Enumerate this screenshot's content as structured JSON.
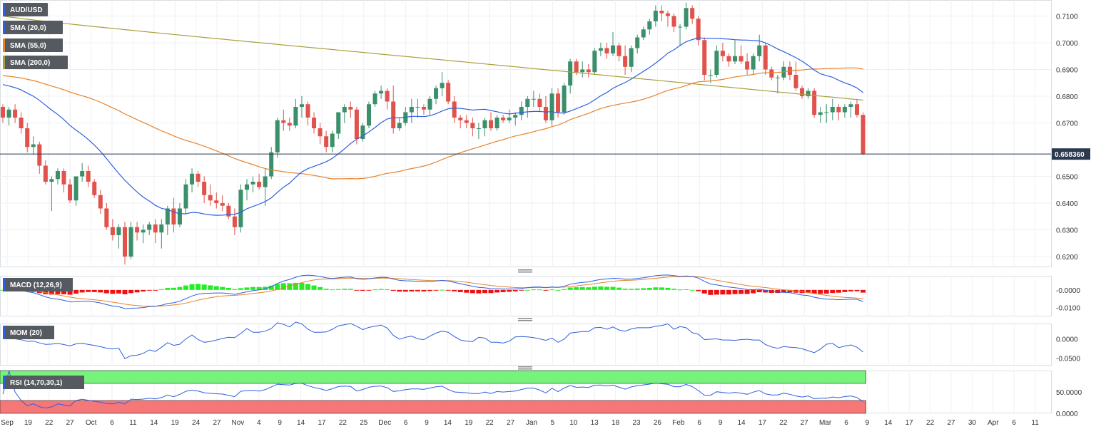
{
  "chart_data": [
    {
      "type": "candlestick",
      "title": "AUD/USD",
      "x_ticks": [
        "Sep",
        "19",
        "22",
        "27",
        "Oct",
        "6",
        "11",
        "14",
        "19",
        "24",
        "27",
        "Nov",
        "4",
        "9",
        "14",
        "17",
        "22",
        "25",
        "Dec",
        "6",
        "9",
        "14",
        "19",
        "22",
        "27",
        "Jan",
        "5",
        "10",
        "13",
        "18",
        "23",
        "26",
        "Feb",
        "6",
        "9",
        "14",
        "17",
        "22",
        "27",
        "Mar",
        "6",
        "9",
        "14",
        "17",
        "22",
        "27",
        "30",
        "Apr",
        "6",
        "11"
      ],
      "y_ticks": [
        "0.7100",
        "0.7000",
        "0.6900",
        "0.6800",
        "0.6700",
        "0.6500",
        "0.6400",
        "0.6300",
        "0.6200"
      ],
      "ylim": [
        0.616,
        0.716
      ],
      "last_price_label": "0.658360",
      "last_price": 0.65836,
      "grid": true,
      "colors": {
        "up": "#3b8f6b",
        "down": "#e0524b",
        "sma20": "#2e5fe0",
        "sma55": "#e8822a",
        "sma200": "#a8a03a",
        "price_line": "#2b3a4f"
      },
      "legend": [
        {
          "label": "AUD/USD",
          "color": "#2e5fe0"
        },
        {
          "label": "SMA (20,0)",
          "color": "#2e5fe0"
        },
        {
          "label": "SMA (55,0)",
          "color": "#e8822a"
        },
        {
          "label": "SMA (200,0)",
          "color": "#a8a03a"
        }
      ],
      "ohlc": [
        [
          0.676,
          0.677,
          0.67,
          0.672
        ],
        [
          0.672,
          0.676,
          0.669,
          0.675
        ],
        [
          0.675,
          0.677,
          0.67,
          0.672
        ],
        [
          0.672,
          0.674,
          0.666,
          0.668
        ],
        [
          0.668,
          0.67,
          0.659,
          0.661
        ],
        [
          0.661,
          0.665,
          0.658,
          0.662
        ],
        [
          0.662,
          0.663,
          0.651,
          0.654
        ],
        [
          0.654,
          0.656,
          0.647,
          0.648
        ],
        [
          0.648,
          0.65,
          0.637,
          0.649
        ],
        [
          0.649,
          0.653,
          0.647,
          0.652
        ],
        [
          0.652,
          0.653,
          0.644,
          0.647
        ],
        [
          0.647,
          0.649,
          0.64,
          0.641
        ],
        [
          0.641,
          0.65,
          0.639,
          0.65
        ],
        [
          0.65,
          0.655,
          0.648,
          0.652
        ],
        [
          0.652,
          0.654,
          0.646,
          0.648
        ],
        [
          0.648,
          0.649,
          0.642,
          0.643
        ],
        [
          0.643,
          0.645,
          0.636,
          0.638
        ],
        [
          0.638,
          0.64,
          0.63,
          0.631
        ],
        [
          0.631,
          0.634,
          0.626,
          0.628
        ],
        [
          0.628,
          0.632,
          0.623,
          0.631
        ],
        [
          0.631,
          0.633,
          0.617,
          0.62
        ],
        [
          0.62,
          0.633,
          0.619,
          0.631
        ],
        [
          0.631,
          0.633,
          0.626,
          0.629
        ],
        [
          0.629,
          0.632,
          0.625,
          0.63
        ],
        [
          0.63,
          0.633,
          0.628,
          0.632
        ],
        [
          0.632,
          0.634,
          0.625,
          0.629
        ],
        [
          0.629,
          0.634,
          0.623,
          0.632
        ],
        [
          0.632,
          0.639,
          0.628,
          0.638
        ],
        [
          0.638,
          0.642,
          0.629,
          0.632
        ],
        [
          0.632,
          0.64,
          0.631,
          0.638
        ],
        [
          0.638,
          0.649,
          0.636,
          0.647
        ],
        [
          0.647,
          0.653,
          0.644,
          0.651
        ],
        [
          0.651,
          0.652,
          0.646,
          0.648
        ],
        [
          0.648,
          0.65,
          0.64,
          0.643
        ],
        [
          0.643,
          0.647,
          0.639,
          0.641
        ],
        [
          0.641,
          0.644,
          0.638,
          0.64
        ],
        [
          0.64,
          0.643,
          0.637,
          0.639
        ],
        [
          0.639,
          0.64,
          0.634,
          0.635
        ],
        [
          0.635,
          0.638,
          0.628,
          0.631
        ],
        [
          0.631,
          0.647,
          0.629,
          0.645
        ],
        [
          0.645,
          0.649,
          0.641,
          0.647
        ],
        [
          0.647,
          0.65,
          0.644,
          0.648
        ],
        [
          0.648,
          0.651,
          0.645,
          0.646
        ],
        [
          0.646,
          0.653,
          0.639,
          0.65
        ],
        [
          0.65,
          0.661,
          0.649,
          0.659
        ],
        [
          0.659,
          0.672,
          0.657,
          0.671
        ],
        [
          0.671,
          0.675,
          0.667,
          0.67
        ],
        [
          0.67,
          0.672,
          0.667,
          0.669
        ],
        [
          0.669,
          0.679,
          0.668,
          0.676
        ],
        [
          0.676,
          0.68,
          0.672,
          0.677
        ],
        [
          0.677,
          0.678,
          0.669,
          0.672
        ],
        [
          0.672,
          0.674,
          0.666,
          0.668
        ],
        [
          0.668,
          0.67,
          0.662,
          0.665
        ],
        [
          0.665,
          0.667,
          0.659,
          0.661
        ],
        [
          0.661,
          0.667,
          0.659,
          0.666
        ],
        [
          0.666,
          0.674,
          0.664,
          0.674
        ],
        [
          0.674,
          0.677,
          0.67,
          0.676
        ],
        [
          0.676,
          0.678,
          0.672,
          0.675
        ],
        [
          0.675,
          0.676,
          0.662,
          0.664
        ],
        [
          0.664,
          0.67,
          0.663,
          0.669
        ],
        [
          0.669,
          0.678,
          0.668,
          0.677
        ],
        [
          0.677,
          0.682,
          0.676,
          0.681
        ],
        [
          0.681,
          0.684,
          0.679,
          0.682
        ],
        [
          0.682,
          0.683,
          0.675,
          0.678
        ],
        [
          0.678,
          0.684,
          0.666,
          0.668
        ],
        [
          0.668,
          0.672,
          0.667,
          0.67
        ],
        [
          0.67,
          0.676,
          0.669,
          0.674
        ],
        [
          0.674,
          0.679,
          0.67,
          0.676
        ],
        [
          0.676,
          0.679,
          0.672,
          0.676
        ],
        [
          0.676,
          0.677,
          0.673,
          0.675
        ],
        [
          0.675,
          0.68,
          0.673,
          0.679
        ],
        [
          0.679,
          0.684,
          0.677,
          0.683
        ],
        [
          0.683,
          0.689,
          0.68,
          0.685
        ],
        [
          0.685,
          0.686,
          0.677,
          0.678
        ],
        [
          0.678,
          0.68,
          0.67,
          0.672
        ],
        [
          0.672,
          0.673,
          0.668,
          0.671
        ],
        [
          0.671,
          0.673,
          0.668,
          0.67
        ],
        [
          0.67,
          0.672,
          0.665,
          0.668
        ],
        [
          0.668,
          0.67,
          0.664,
          0.668
        ],
        [
          0.668,
          0.672,
          0.665,
          0.671
        ],
        [
          0.671,
          0.674,
          0.667,
          0.668
        ],
        [
          0.668,
          0.673,
          0.667,
          0.672
        ],
        [
          0.672,
          0.673,
          0.67,
          0.671
        ],
        [
          0.671,
          0.675,
          0.67,
          0.672
        ],
        [
          0.672,
          0.674,
          0.669,
          0.673
        ],
        [
          0.673,
          0.678,
          0.671,
          0.676
        ],
        [
          0.676,
          0.68,
          0.672,
          0.679
        ],
        [
          0.679,
          0.682,
          0.676,
          0.679
        ],
        [
          0.679,
          0.681,
          0.674,
          0.676
        ],
        [
          0.676,
          0.68,
          0.67,
          0.671
        ],
        [
          0.671,
          0.683,
          0.669,
          0.681
        ],
        [
          0.681,
          0.683,
          0.672,
          0.674
        ],
        [
          0.674,
          0.685,
          0.673,
          0.684
        ],
        [
          0.684,
          0.694,
          0.681,
          0.693
        ],
        [
          0.693,
          0.694,
          0.688,
          0.689
        ],
        [
          0.689,
          0.693,
          0.687,
          0.69
        ],
        [
          0.69,
          0.692,
          0.687,
          0.689
        ],
        [
          0.689,
          0.698,
          0.688,
          0.697
        ],
        [
          0.697,
          0.7,
          0.695,
          0.698
        ],
        [
          0.698,
          0.7,
          0.694,
          0.696
        ],
        [
          0.696,
          0.704,
          0.695,
          0.699
        ],
        [
          0.699,
          0.7,
          0.693,
          0.695
        ],
        [
          0.695,
          0.699,
          0.688,
          0.691
        ],
        [
          0.691,
          0.699,
          0.689,
          0.698
        ],
        [
          0.698,
          0.703,
          0.696,
          0.702
        ],
        [
          0.702,
          0.706,
          0.701,
          0.705
        ],
        [
          0.705,
          0.709,
          0.703,
          0.708
        ],
        [
          0.708,
          0.714,
          0.706,
          0.712
        ],
        [
          0.712,
          0.714,
          0.708,
          0.711
        ],
        [
          0.711,
          0.712,
          0.706,
          0.71
        ],
        [
          0.71,
          0.711,
          0.704,
          0.706
        ],
        [
          0.706,
          0.707,
          0.699,
          0.706
        ],
        [
          0.706,
          0.715,
          0.705,
          0.713
        ],
        [
          0.713,
          0.714,
          0.707,
          0.709
        ],
        [
          0.709,
          0.71,
          0.699,
          0.701
        ],
        [
          0.701,
          0.702,
          0.686,
          0.688
        ],
        [
          0.688,
          0.69,
          0.685,
          0.688
        ],
        [
          0.688,
          0.699,
          0.687,
          0.697
        ],
        [
          0.697,
          0.7,
          0.693,
          0.695
        ],
        [
          0.695,
          0.696,
          0.691,
          0.693
        ],
        [
          0.693,
          0.701,
          0.692,
          0.695
        ],
        [
          0.695,
          0.699,
          0.692,
          0.693
        ],
        [
          0.693,
          0.696,
          0.688,
          0.69
        ],
        [
          0.69,
          0.696,
          0.688,
          0.695
        ],
        [
          0.695,
          0.703,
          0.693,
          0.699
        ],
        [
          0.699,
          0.7,
          0.688,
          0.69
        ],
        [
          0.69,
          0.691,
          0.686,
          0.687
        ],
        [
          0.687,
          0.688,
          0.681,
          0.687
        ],
        [
          0.687,
          0.693,
          0.686,
          0.691
        ],
        [
          0.691,
          0.693,
          0.686,
          0.688
        ],
        [
          0.688,
          0.693,
          0.682,
          0.683
        ],
        [
          0.683,
          0.684,
          0.679,
          0.68
        ],
        [
          0.68,
          0.683,
          0.679,
          0.682
        ],
        [
          0.682,
          0.683,
          0.672,
          0.673
        ],
        [
          0.673,
          0.676,
          0.67,
          0.674
        ],
        [
          0.674,
          0.677,
          0.67,
          0.674
        ],
        [
          0.674,
          0.679,
          0.671,
          0.676
        ],
        [
          0.676,
          0.677,
          0.671,
          0.674
        ],
        [
          0.674,
          0.677,
          0.672,
          0.676
        ],
        [
          0.676,
          0.678,
          0.672,
          0.677
        ],
        [
          0.677,
          0.679,
          0.672,
          0.673
        ],
        [
          0.673,
          0.674,
          0.658,
          0.6584
        ]
      ]
    },
    {
      "type": "bar",
      "title": "MACD (12,26,9)",
      "y_ticks": [
        "-0.0000",
        "-0.0100"
      ],
      "ylim": [
        -0.015,
        0.008
      ],
      "colors": {
        "pos": "#22ee22",
        "neg": "#ee1111",
        "macd": "#2e5fe0",
        "signal": "#e8822a"
      }
    },
    {
      "type": "line",
      "title": "MOM (20)",
      "y_ticks": [
        "0.0000",
        "-0.0500"
      ],
      "ylim": [
        -0.07,
        0.04
      ],
      "colors": {
        "line": "#2e5fe0"
      }
    },
    {
      "type": "line",
      "title": "RSI (14,70,30,1)",
      "y_ticks": [
        "50.0000",
        "0.0000"
      ],
      "ylim": [
        0,
        100
      ],
      "overbought": 70,
      "oversold": 30,
      "colors": {
        "line": "#2e5fe0",
        "ob_zone": "#76f27d",
        "os_zone": "#f57777"
      }
    }
  ]
}
